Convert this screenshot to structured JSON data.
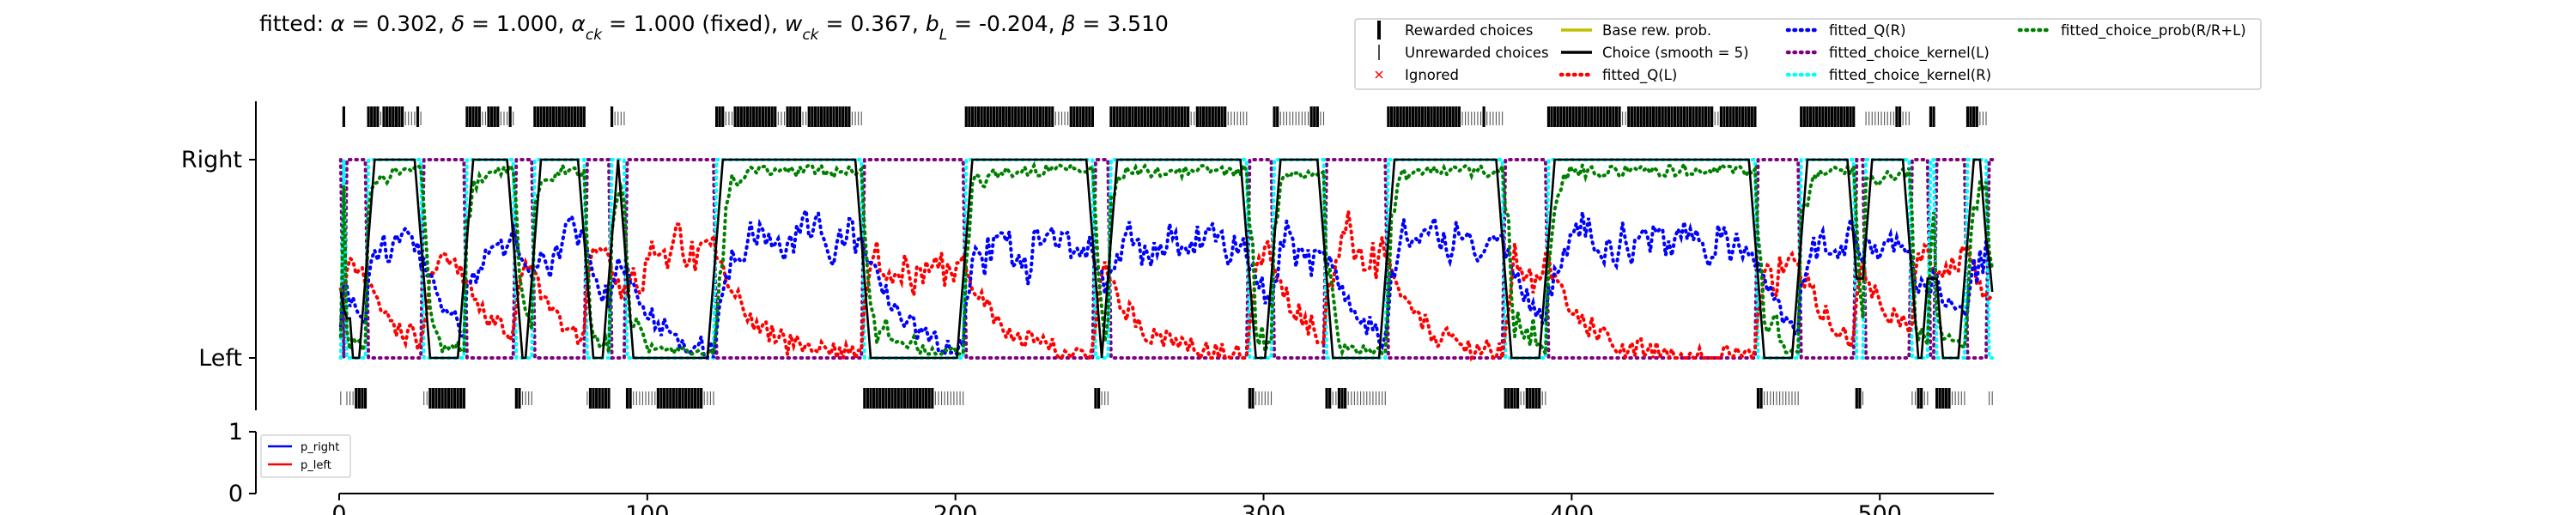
{
  "chart_data": [
    {
      "type": "line",
      "title": "fitted: α = 0.302, δ = 1.000, αck = 1.000 (fixed), wck = 0.367, bL = -0.204, β = 3.510",
      "title_parts": [
        {
          "t": "fitted: "
        },
        {
          "t": "α",
          "i": true
        },
        {
          "t": " = 0.302, "
        },
        {
          "t": "δ",
          "i": true
        },
        {
          "t": " = 1.000, "
        },
        {
          "t": "α",
          "i": true
        },
        {
          "t": "ck",
          "i": true,
          "sub": true
        },
        {
          "t": " = 1.000 (fixed), "
        },
        {
          "t": "w",
          "i": true
        },
        {
          "t": "ck",
          "i": true,
          "sub": true
        },
        {
          "t": " = 0.367, "
        },
        {
          "t": "b",
          "i": true
        },
        {
          "t": "L",
          "i": true,
          "sub": true
        },
        {
          "t": " = -0.204, "
        },
        {
          "t": "β",
          "i": true
        },
        {
          "t": " = 3.510"
        }
      ],
      "xlim": [
        0,
        537
      ],
      "ylim": [
        -0.35,
        1.35
      ],
      "yticks": [
        {
          "value": 0,
          "label": "Left"
        },
        {
          "value": 1,
          "label": "Right"
        }
      ],
      "n_trials": 537,
      "legend_position": "top-right",
      "legend": [
        {
          "label": "Rewarded choices",
          "kind": "thick-tick",
          "color": "#000000"
        },
        {
          "label": "Unrewarded choices",
          "kind": "thin-tick",
          "color": "#000000"
        },
        {
          "label": "Ignored",
          "kind": "cross",
          "color": "#ff0000"
        },
        {
          "label": "Base rew. prob.",
          "kind": "solid",
          "color": "#bfbf00"
        },
        {
          "label": "Choice (smooth = 5)",
          "kind": "solid",
          "color": "#000000"
        },
        {
          "label": "fitted_Q(L)",
          "kind": "dotted",
          "color": "#ff0000"
        },
        {
          "label": "fitted_Q(R)",
          "kind": "dotted",
          "color": "#0000ff"
        },
        {
          "label": "fitted_choice_kernel(L)",
          "kind": "dotted",
          "color": "#800080"
        },
        {
          "label": "fitted_choice_kernel(R)",
          "kind": "dotted",
          "color": "#00ffff"
        },
        {
          "label": "fitted_choice_prob(R/R+L)",
          "kind": "dotted",
          "color": "#008000"
        }
      ],
      "right_blocks": [
        [
          1,
          2
        ],
        [
          9,
          27
        ],
        [
          41,
          57
        ],
        [
          63,
          80
        ],
        [
          88,
          93
        ],
        [
          122,
          170
        ],
        [
          203,
          245
        ],
        [
          250,
          295
        ],
        [
          303,
          320
        ],
        [
          340,
          378
        ],
        [
          392,
          460
        ],
        [
          474,
          492
        ],
        [
          495,
          510
        ],
        [
          516,
          518
        ],
        [
          528,
          535
        ]
      ],
      "left_blocks": [
        [
          2,
          9
        ],
        [
          28,
          41
        ],
        [
          57,
          63
        ],
        [
          80,
          88
        ],
        [
          93,
          122
        ],
        [
          170,
          203
        ],
        [
          245,
          250
        ],
        [
          295,
          303
        ],
        [
          320,
          340
        ],
        [
          378,
          392
        ],
        [
          460,
          474
        ],
        [
          492,
          495
        ],
        [
          510,
          516
        ],
        [
          518,
          528
        ],
        [
          535,
          537
        ]
      ],
      "rewarded_right_intervals": [
        [
          1,
          2
        ],
        [
          9,
          13
        ],
        [
          14,
          21
        ],
        [
          25,
          26
        ],
        [
          41,
          46
        ],
        [
          48,
          52
        ],
        [
          55,
          56
        ],
        [
          63,
          80
        ],
        [
          88,
          89
        ],
        [
          122,
          125
        ],
        [
          128,
          142
        ],
        [
          145,
          150
        ],
        [
          152,
          166
        ],
        [
          203,
          232
        ],
        [
          237,
          245
        ],
        [
          250,
          276
        ],
        [
          278,
          288
        ],
        [
          303,
          305
        ],
        [
          315,
          318
        ],
        [
          340,
          364
        ],
        [
          371,
          372
        ],
        [
          392,
          416
        ],
        [
          418,
          446
        ],
        [
          448,
          460
        ],
        [
          474,
          492
        ],
        [
          505,
          507
        ],
        [
          516,
          518
        ],
        [
          528,
          532
        ]
      ],
      "rewarded_left_intervals": [
        [
          5,
          9
        ],
        [
          29,
          41
        ],
        [
          57,
          59
        ],
        [
          81,
          88
        ],
        [
          93,
          95
        ],
        [
          103,
          118
        ],
        [
          170,
          193
        ],
        [
          245,
          247
        ],
        [
          295,
          297
        ],
        [
          320,
          322
        ],
        [
          324,
          327
        ],
        [
          378,
          383
        ],
        [
          385,
          390
        ],
        [
          460,
          462
        ],
        [
          492,
          494
        ],
        [
          512,
          514
        ],
        [
          518,
          523
        ]
      ],
      "left_unrewarded_span": [
        535,
        537
      ]
    },
    {
      "type": "line",
      "xlim": [
        0,
        537
      ],
      "ylim": [
        0,
        1
      ],
      "yticks": [
        0,
        1
      ],
      "xticks": [
        0,
        100,
        200,
        300,
        400,
        500
      ],
      "legend_position": "top-left",
      "legend": [
        {
          "label": "p_right",
          "color": "#0000ff"
        },
        {
          "label": "p_left",
          "color": "#ff0000"
        }
      ]
    }
  ]
}
